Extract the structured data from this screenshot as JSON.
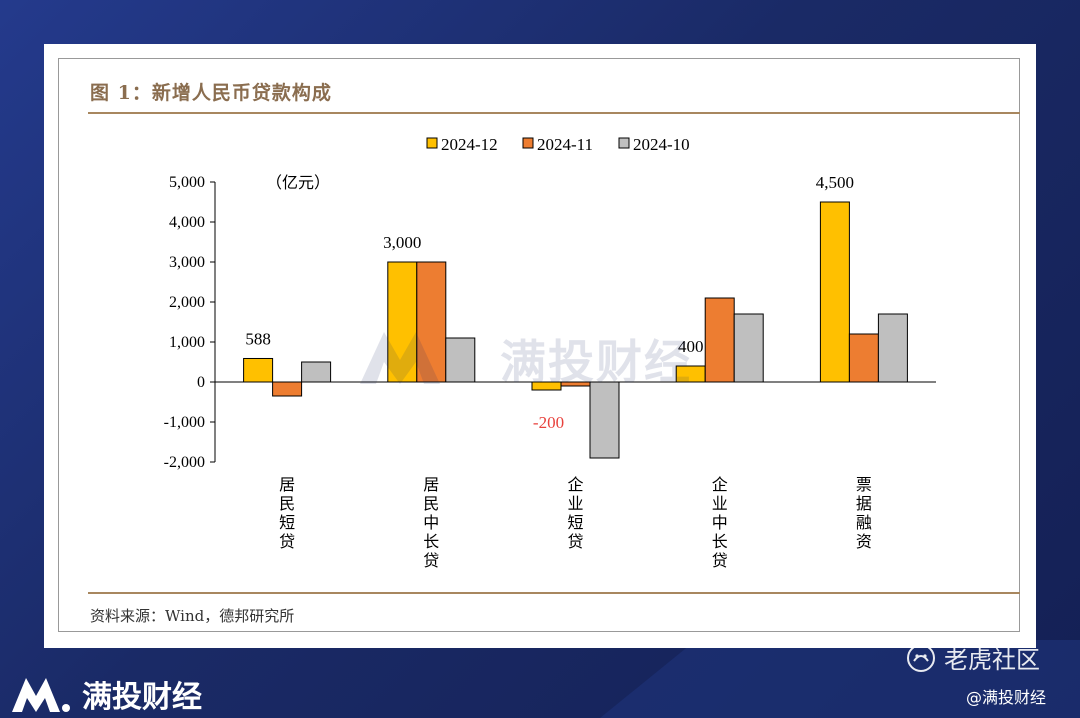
{
  "page": {
    "figure_title": "图 1：新增人民币贷款构成",
    "source_note": "资料来源：Wind，德邦研究所",
    "watermark_text": "满投财经",
    "brand_text": "满投财经",
    "community_text": "老虎社区",
    "handle_text": "@满投财经"
  },
  "colors": {
    "series": [
      "#FFC000",
      "#ED7D31",
      "#BFBFBF"
    ],
    "negative_label": "#E8413C",
    "axis": "#000000",
    "accent": "#a8875f"
  },
  "chart_data": {
    "type": "bar",
    "title": "",
    "unit_label": "（亿元）",
    "xlabel": "",
    "ylabel": "",
    "ylim": [
      -2000,
      5000
    ],
    "yticks": [
      -2000,
      -1000,
      0,
      1000,
      2000,
      3000,
      4000,
      5000
    ],
    "ytick_labels": [
      "-2,000",
      "-1,000",
      "0",
      "1,000",
      "2,000",
      "3,000",
      "4,000",
      "5,000"
    ],
    "grid": false,
    "legend": "top-center",
    "categories": [
      "居民短贷",
      "居民中长贷",
      "企业短贷",
      "企业中长贷",
      "票据融资"
    ],
    "series": [
      {
        "name": "2024-12",
        "values": [
          588,
          3000,
          -200,
          400,
          4500
        ]
      },
      {
        "name": "2024-11",
        "values": [
          -350,
          3000,
          -100,
          2100,
          1200
        ]
      },
      {
        "name": "2024-10",
        "values": [
          500,
          1100,
          -1900,
          1700,
          1700
        ]
      }
    ],
    "data_labels": [
      {
        "category": "居民短贷",
        "series": "2024-12",
        "text": "588"
      },
      {
        "category": "居民中长贷",
        "series": "2024-12",
        "text": "3,000"
      },
      {
        "category": "企业短贷",
        "series": "2024-12",
        "text": "-200"
      },
      {
        "category": "企业中长贷",
        "series": "2024-12",
        "text": "400"
      },
      {
        "category": "票据融资",
        "series": "2024-12",
        "text": "4,500"
      }
    ]
  }
}
